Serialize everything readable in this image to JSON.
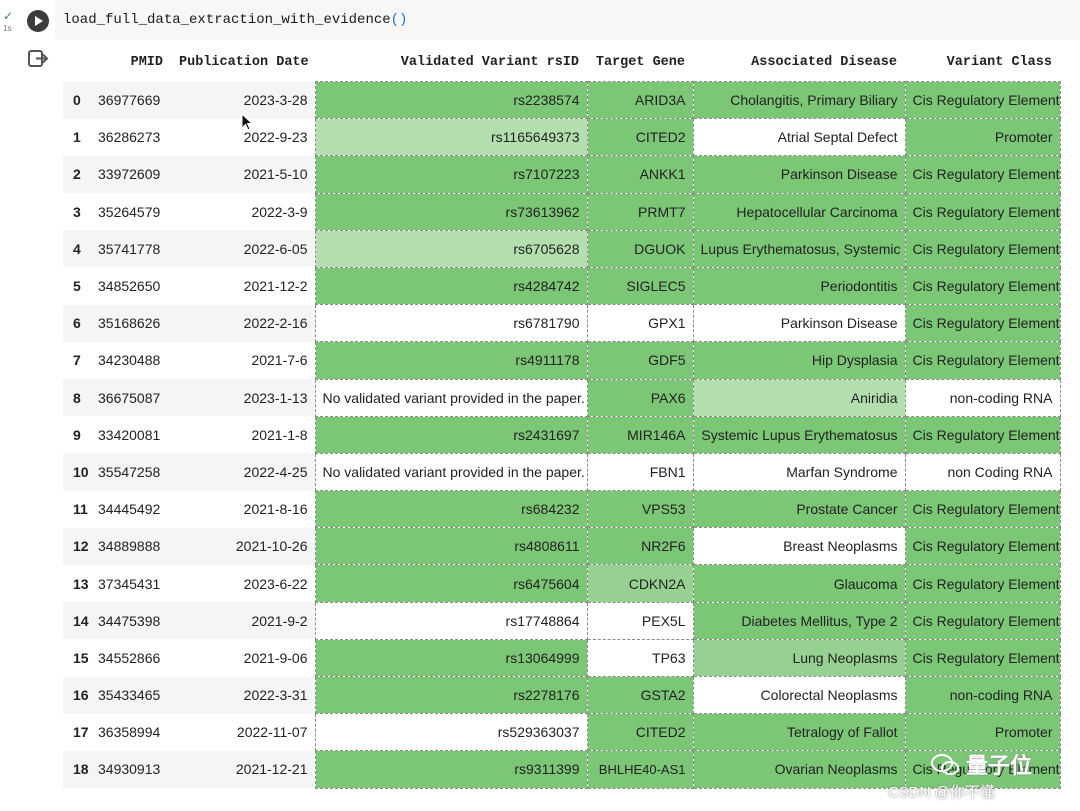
{
  "cell_status": {
    "check": "✓",
    "exec_time": "1s"
  },
  "code_line": {
    "func": "load_full_data_extraction_with_evidence",
    "parens": "()"
  },
  "table": {
    "headers": [
      "",
      "PMID",
      "Publication Date",
      "Validated Variant rsID",
      "Target Gene",
      "Associated Disease",
      "Variant Class"
    ],
    "rows": [
      {
        "idx": "0",
        "pmid": "36977669",
        "date": "2023-3-28",
        "rsid": "rs2238574",
        "gene": "ARID3A",
        "disease": "Cholangitis, Primary Biliary",
        "vclass": "Cis Regulatory Element"
      },
      {
        "idx": "1",
        "pmid": "36286273",
        "date": "2022-9-23",
        "rsid": "rs1165649373",
        "gene": "CITED2",
        "disease": "Atrial Septal Defect",
        "vclass": "Promoter"
      },
      {
        "idx": "2",
        "pmid": "33972609",
        "date": "2021-5-10",
        "rsid": "rs7107223",
        "gene": "ANKK1",
        "disease": "Parkinson Disease",
        "vclass": "Cis Regulatory Element"
      },
      {
        "idx": "3",
        "pmid": "35264579",
        "date": "2022-3-9",
        "rsid": "rs73613962",
        "gene": "PRMT7",
        "disease": "Hepatocellular Carcinoma",
        "vclass": "Cis Regulatory Element"
      },
      {
        "idx": "4",
        "pmid": "35741778",
        "date": "2022-6-05",
        "rsid": "rs6705628",
        "gene": "DGUOK",
        "disease": "Lupus Erythematosus, Systemic",
        "vclass": "Cis Regulatory Element"
      },
      {
        "idx": "5",
        "pmid": "34852650",
        "date": "2021-12-2",
        "rsid": "rs4284742",
        "gene": "SIGLEC5",
        "disease": "Periodontitis",
        "vclass": "Cis Regulatory Element"
      },
      {
        "idx": "6",
        "pmid": "35168626",
        "date": "2022-2-16",
        "rsid": "rs6781790",
        "gene": "GPX1",
        "disease": "Parkinson Disease",
        "vclass": "Cis Regulatory Element"
      },
      {
        "idx": "7",
        "pmid": "34230488",
        "date": "2021-7-6",
        "rsid": "rs4911178",
        "gene": "GDF5",
        "disease": "Hip Dysplasia",
        "vclass": "Cis Regulatory Element"
      },
      {
        "idx": "8",
        "pmid": "36675087",
        "date": "2023-1-13",
        "rsid": "No validated variant provided in the paper.",
        "gene": "PAX6",
        "disease": "Aniridia",
        "vclass": "non-coding RNA"
      },
      {
        "idx": "9",
        "pmid": "33420081",
        "date": "2021-1-8",
        "rsid": "rs2431697",
        "gene": "MIR146A",
        "disease": "Systemic Lupus Erythematosus",
        "vclass": "Cis Regulatory Element"
      },
      {
        "idx": "10",
        "pmid": "35547258",
        "date": "2022-4-25",
        "rsid": "No validated variant provided in the paper.",
        "gene": "FBN1",
        "disease": "Marfan Syndrome",
        "vclass": "non Coding RNA"
      },
      {
        "idx": "11",
        "pmid": "34445492",
        "date": "2021-8-16",
        "rsid": "rs684232",
        "gene": "VPS53",
        "disease": "Prostate Cancer",
        "vclass": "Cis Regulatory Element"
      },
      {
        "idx": "12",
        "pmid": "34889888",
        "date": "2021-10-26",
        "rsid": "rs4808611",
        "gene": "NR2F6",
        "disease": "Breast Neoplasms",
        "vclass": "Cis Regulatory Element"
      },
      {
        "idx": "13",
        "pmid": "37345431",
        "date": "2023-6-22",
        "rsid": "rs6475604",
        "gene": "CDKN2A",
        "disease": "Glaucoma",
        "vclass": "Cis Regulatory Element"
      },
      {
        "idx": "14",
        "pmid": "34475398",
        "date": "2021-9-2",
        "rsid": "rs17748864",
        "gene": "PEX5L",
        "disease": "Diabetes Mellitus, Type 2",
        "vclass": "Cis Regulatory Element"
      },
      {
        "idx": "15",
        "pmid": "34552866",
        "date": "2021-9-06",
        "rsid": "rs13064999",
        "gene": "TP63",
        "disease": "Lung Neoplasms",
        "vclass": "Cis Regulatory Element"
      },
      {
        "idx": "16",
        "pmid": "35433465",
        "date": "2022-3-31",
        "rsid": "rs2278176",
        "gene": "GSTA2",
        "disease": "Colorectal Neoplasms",
        "vclass": "non-coding RNA"
      },
      {
        "idx": "17",
        "pmid": "36358994",
        "date": "2022-11-07",
        "rsid": "rs529363037",
        "gene": "CITED2",
        "disease": "Tetralogy of Fallot",
        "vclass": "Promoter"
      },
      {
        "idx": "18",
        "pmid": "34930913",
        "date": "2021-12-21",
        "rsid": "rs9311399",
        "gene": "BHLHE40-AS1",
        "disease": "Ovarian Neoplasms",
        "vclass": "Cis Regulatory Element"
      }
    ]
  },
  "watermark": {
    "title": "量子位",
    "sub": "CSDN @你不懂"
  }
}
